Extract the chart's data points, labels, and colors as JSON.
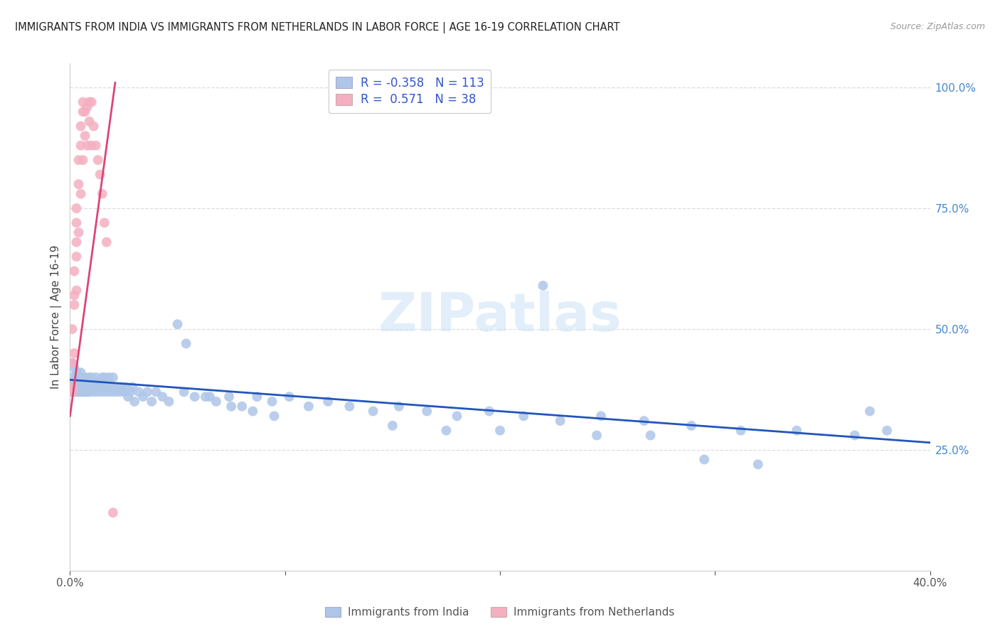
{
  "title": "IMMIGRANTS FROM INDIA VS IMMIGRANTS FROM NETHERLANDS IN LABOR FORCE | AGE 16-19 CORRELATION CHART",
  "source": "Source: ZipAtlas.com",
  "ylabel": "In Labor Force | Age 16-19",
  "x_min": 0.0,
  "x_max": 0.4,
  "y_min": 0.0,
  "y_max": 1.05,
  "y_ticks_right": [
    0.25,
    0.5,
    0.75,
    1.0
  ],
  "y_tick_labels_right": [
    "25.0%",
    "50.0%",
    "75.0%",
    "100.0%"
  ],
  "grid_color": "#dddddd",
  "background_color": "#ffffff",
  "india_color": "#aec6e8",
  "india_line_color": "#2255bb",
  "netherlands_color": "#f4b0c0",
  "netherlands_line_color": "#dd4477",
  "india_R": -0.358,
  "india_N": 113,
  "netherlands_R": 0.571,
  "netherlands_N": 38,
  "legend_text_color": "#3355cc",
  "watermark": "ZIPatlas",
  "india_line_x0": 0.0,
  "india_line_x1": 0.4,
  "india_line_y0": 0.395,
  "india_line_y1": 0.265,
  "neth_line_x0": 0.0,
  "neth_line_x1": 0.021,
  "neth_line_y0": 0.32,
  "neth_line_y1": 1.01,
  "india_x": [
    0.001,
    0.001,
    0.001,
    0.002,
    0.002,
    0.002,
    0.002,
    0.003,
    0.003,
    0.003,
    0.003,
    0.003,
    0.004,
    0.004,
    0.004,
    0.004,
    0.005,
    0.005,
    0.005,
    0.005,
    0.005,
    0.006,
    0.006,
    0.006,
    0.006,
    0.006,
    0.007,
    0.007,
    0.007,
    0.007,
    0.008,
    0.008,
    0.008,
    0.009,
    0.009,
    0.009,
    0.01,
    0.01,
    0.011,
    0.011,
    0.012,
    0.012,
    0.013,
    0.013,
    0.014,
    0.015,
    0.015,
    0.016,
    0.016,
    0.017,
    0.018,
    0.018,
    0.019,
    0.02,
    0.02,
    0.021,
    0.022,
    0.023,
    0.024,
    0.025,
    0.026,
    0.027,
    0.028,
    0.029,
    0.03,
    0.032,
    0.034,
    0.036,
    0.038,
    0.04,
    0.043,
    0.046,
    0.05,
    0.054,
    0.058,
    0.063,
    0.068,
    0.074,
    0.08,
    0.087,
    0.094,
    0.102,
    0.111,
    0.12,
    0.13,
    0.141,
    0.153,
    0.166,
    0.18,
    0.195,
    0.211,
    0.228,
    0.247,
    0.267,
    0.289,
    0.312,
    0.338,
    0.365,
    0.372,
    0.38,
    0.053,
    0.065,
    0.075,
    0.085,
    0.095,
    0.15,
    0.175,
    0.2,
    0.22,
    0.245,
    0.27,
    0.295,
    0.32
  ],
  "india_y": [
    0.4,
    0.37,
    0.43,
    0.39,
    0.38,
    0.42,
    0.37,
    0.4,
    0.38,
    0.39,
    0.41,
    0.37,
    0.39,
    0.38,
    0.4,
    0.37,
    0.39,
    0.38,
    0.41,
    0.37,
    0.4,
    0.38,
    0.39,
    0.37,
    0.4,
    0.38,
    0.39,
    0.37,
    0.38,
    0.4,
    0.37,
    0.39,
    0.38,
    0.4,
    0.37,
    0.39,
    0.38,
    0.4,
    0.37,
    0.39,
    0.38,
    0.4,
    0.37,
    0.39,
    0.38,
    0.4,
    0.37,
    0.38,
    0.4,
    0.37,
    0.38,
    0.4,
    0.37,
    0.38,
    0.4,
    0.37,
    0.38,
    0.37,
    0.38,
    0.37,
    0.38,
    0.36,
    0.37,
    0.38,
    0.35,
    0.37,
    0.36,
    0.37,
    0.35,
    0.37,
    0.36,
    0.35,
    0.51,
    0.47,
    0.36,
    0.36,
    0.35,
    0.36,
    0.34,
    0.36,
    0.35,
    0.36,
    0.34,
    0.35,
    0.34,
    0.33,
    0.34,
    0.33,
    0.32,
    0.33,
    0.32,
    0.31,
    0.32,
    0.31,
    0.3,
    0.29,
    0.29,
    0.28,
    0.33,
    0.29,
    0.37,
    0.36,
    0.34,
    0.33,
    0.32,
    0.3,
    0.29,
    0.29,
    0.59,
    0.28,
    0.28,
    0.23,
    0.22
  ],
  "neth_x": [
    0.001,
    0.001,
    0.001,
    0.001,
    0.002,
    0.002,
    0.002,
    0.002,
    0.003,
    0.003,
    0.003,
    0.003,
    0.003,
    0.004,
    0.004,
    0.004,
    0.005,
    0.005,
    0.005,
    0.006,
    0.006,
    0.006,
    0.007,
    0.007,
    0.008,
    0.008,
    0.009,
    0.009,
    0.01,
    0.01,
    0.011,
    0.012,
    0.013,
    0.014,
    0.015,
    0.016,
    0.017,
    0.02
  ],
  "neth_y": [
    0.37,
    0.43,
    0.5,
    0.38,
    0.55,
    0.62,
    0.45,
    0.57,
    0.65,
    0.72,
    0.58,
    0.68,
    0.75,
    0.8,
    0.85,
    0.7,
    0.88,
    0.92,
    0.78,
    0.95,
    0.85,
    0.97,
    0.95,
    0.9,
    0.96,
    0.88,
    0.97,
    0.93,
    0.97,
    0.88,
    0.92,
    0.88,
    0.85,
    0.82,
    0.78,
    0.72,
    0.68,
    0.12
  ]
}
